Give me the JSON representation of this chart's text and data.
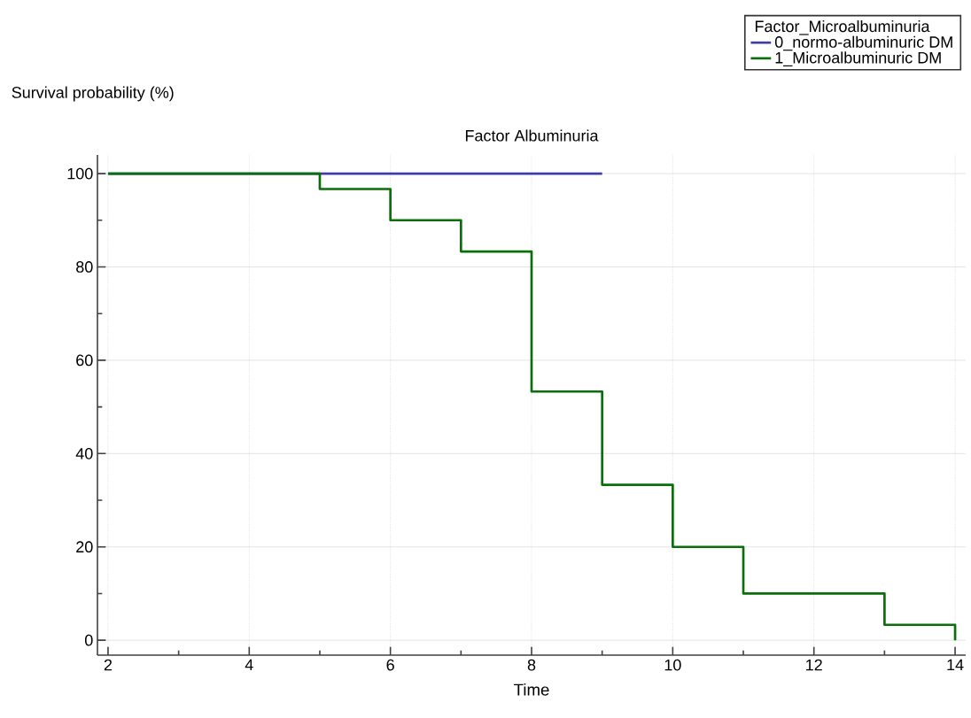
{
  "chart_data": {
    "type": "step",
    "title": "Factor Albuminuria",
    "xlabel": "Time",
    "ylabel": "Survival probability (%)",
    "legend_title": "Factor_Microalbuminuria",
    "series": [
      {
        "name": "0_normo-albuminuric DM",
        "color": "#3c3caa",
        "x": [
          2,
          9
        ],
        "values": [
          100,
          100
        ]
      },
      {
        "name": "1_Microalbuminuric DM",
        "color": "#0a6e0a",
        "x": [
          2,
          5,
          6,
          7,
          8,
          9,
          10,
          11,
          13,
          14
        ],
        "values": [
          100,
          96.7,
          90,
          83.3,
          53.3,
          33.3,
          20,
          10,
          3.3,
          0
        ]
      }
    ],
    "xlim": [
      1.85,
      14.15
    ],
    "ylim": [
      -3.2,
      104
    ],
    "xticks": [
      2,
      4,
      6,
      8,
      10,
      12,
      14
    ],
    "yticks": [
      0,
      20,
      40,
      60,
      80,
      100
    ],
    "grid": true,
    "legend": "top right",
    "marker": "none",
    "line_style": "solid"
  }
}
